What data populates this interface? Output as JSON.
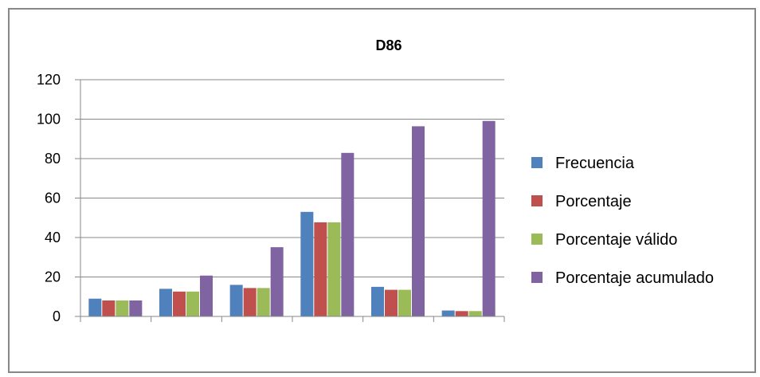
{
  "chart_data": {
    "type": "bar",
    "title": "D86",
    "xlabel": "",
    "ylabel": "",
    "categories": [
      "",
      "",
      "",
      "",
      "",
      ""
    ],
    "ylim": [
      0,
      120
    ],
    "yticks": [
      "0",
      "20",
      "40",
      "60",
      "80",
      "100",
      "120"
    ],
    "grid": true,
    "legend_position": "right",
    "series": [
      {
        "name": "Frecuencia",
        "color": "#4F81BD",
        "values": [
          9,
          14,
          16,
          53,
          15,
          3
        ]
      },
      {
        "name": "Porcentaje",
        "color": "#C0504D",
        "values": [
          8.1,
          12.6,
          14.4,
          47.7,
          13.5,
          2.7
        ]
      },
      {
        "name": "Porcentaje válido",
        "color": "#9BBB59",
        "values": [
          8.1,
          12.6,
          14.4,
          47.7,
          13.5,
          2.7
        ]
      },
      {
        "name": "Porcentaje acumulado",
        "color": "#8064A2",
        "values": [
          8.1,
          20.7,
          35.1,
          82.9,
          96.4,
          99.1
        ]
      }
    ]
  }
}
